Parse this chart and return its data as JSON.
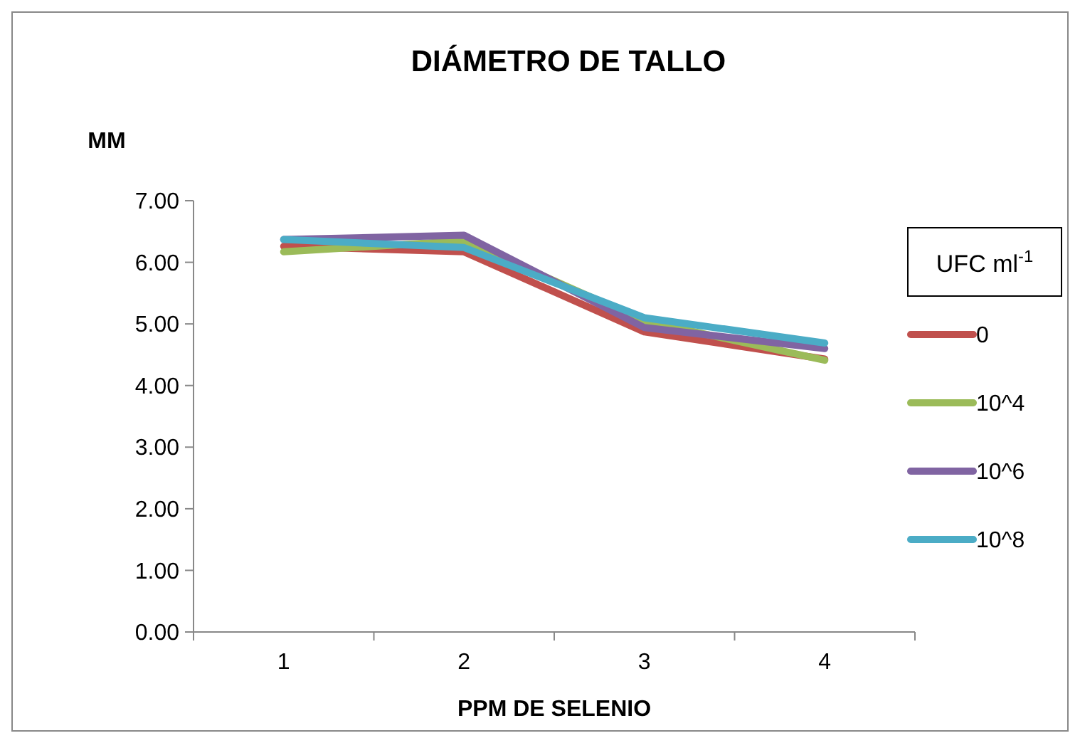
{
  "chart_data": {
    "type": "line",
    "title": "DIÁMETRO DE TALLO",
    "xlabel": "PPM DE SELENIO",
    "ylabel": "MM",
    "legend_title": "UFC ml$^{-1}$",
    "categories": [
      "1",
      "2",
      "3",
      "4"
    ],
    "ylim": [
      0,
      7
    ],
    "yticks": [
      {
        "value": 0,
        "label": "0.00"
      },
      {
        "value": 1,
        "label": "1.00"
      },
      {
        "value": 2,
        "label": "2.00"
      },
      {
        "value": 3,
        "label": "3.00"
      },
      {
        "value": 4,
        "label": "4.00"
      },
      {
        "value": 5,
        "label": "5.00"
      },
      {
        "value": 6,
        "label": "6.00"
      },
      {
        "value": 7,
        "label": "7.00"
      }
    ],
    "grid": false,
    "legend": "right",
    "marker": "none",
    "line_style": "solid",
    "series": [
      {
        "name": "0",
        "color": "#c0504d",
        "values": [
          6.26,
          6.17,
          4.87,
          4.43
        ]
      },
      {
        "name": "10^4",
        "color": "#9bbb59",
        "values": [
          6.17,
          6.35,
          5.05,
          4.41
        ]
      },
      {
        "name": "10^6",
        "color": "#8064a2",
        "values": [
          6.37,
          6.44,
          4.94,
          4.6
        ]
      },
      {
        "name": "10^8",
        "color": "#4bacc6",
        "values": [
          6.37,
          6.24,
          5.1,
          4.69
        ]
      }
    ]
  }
}
